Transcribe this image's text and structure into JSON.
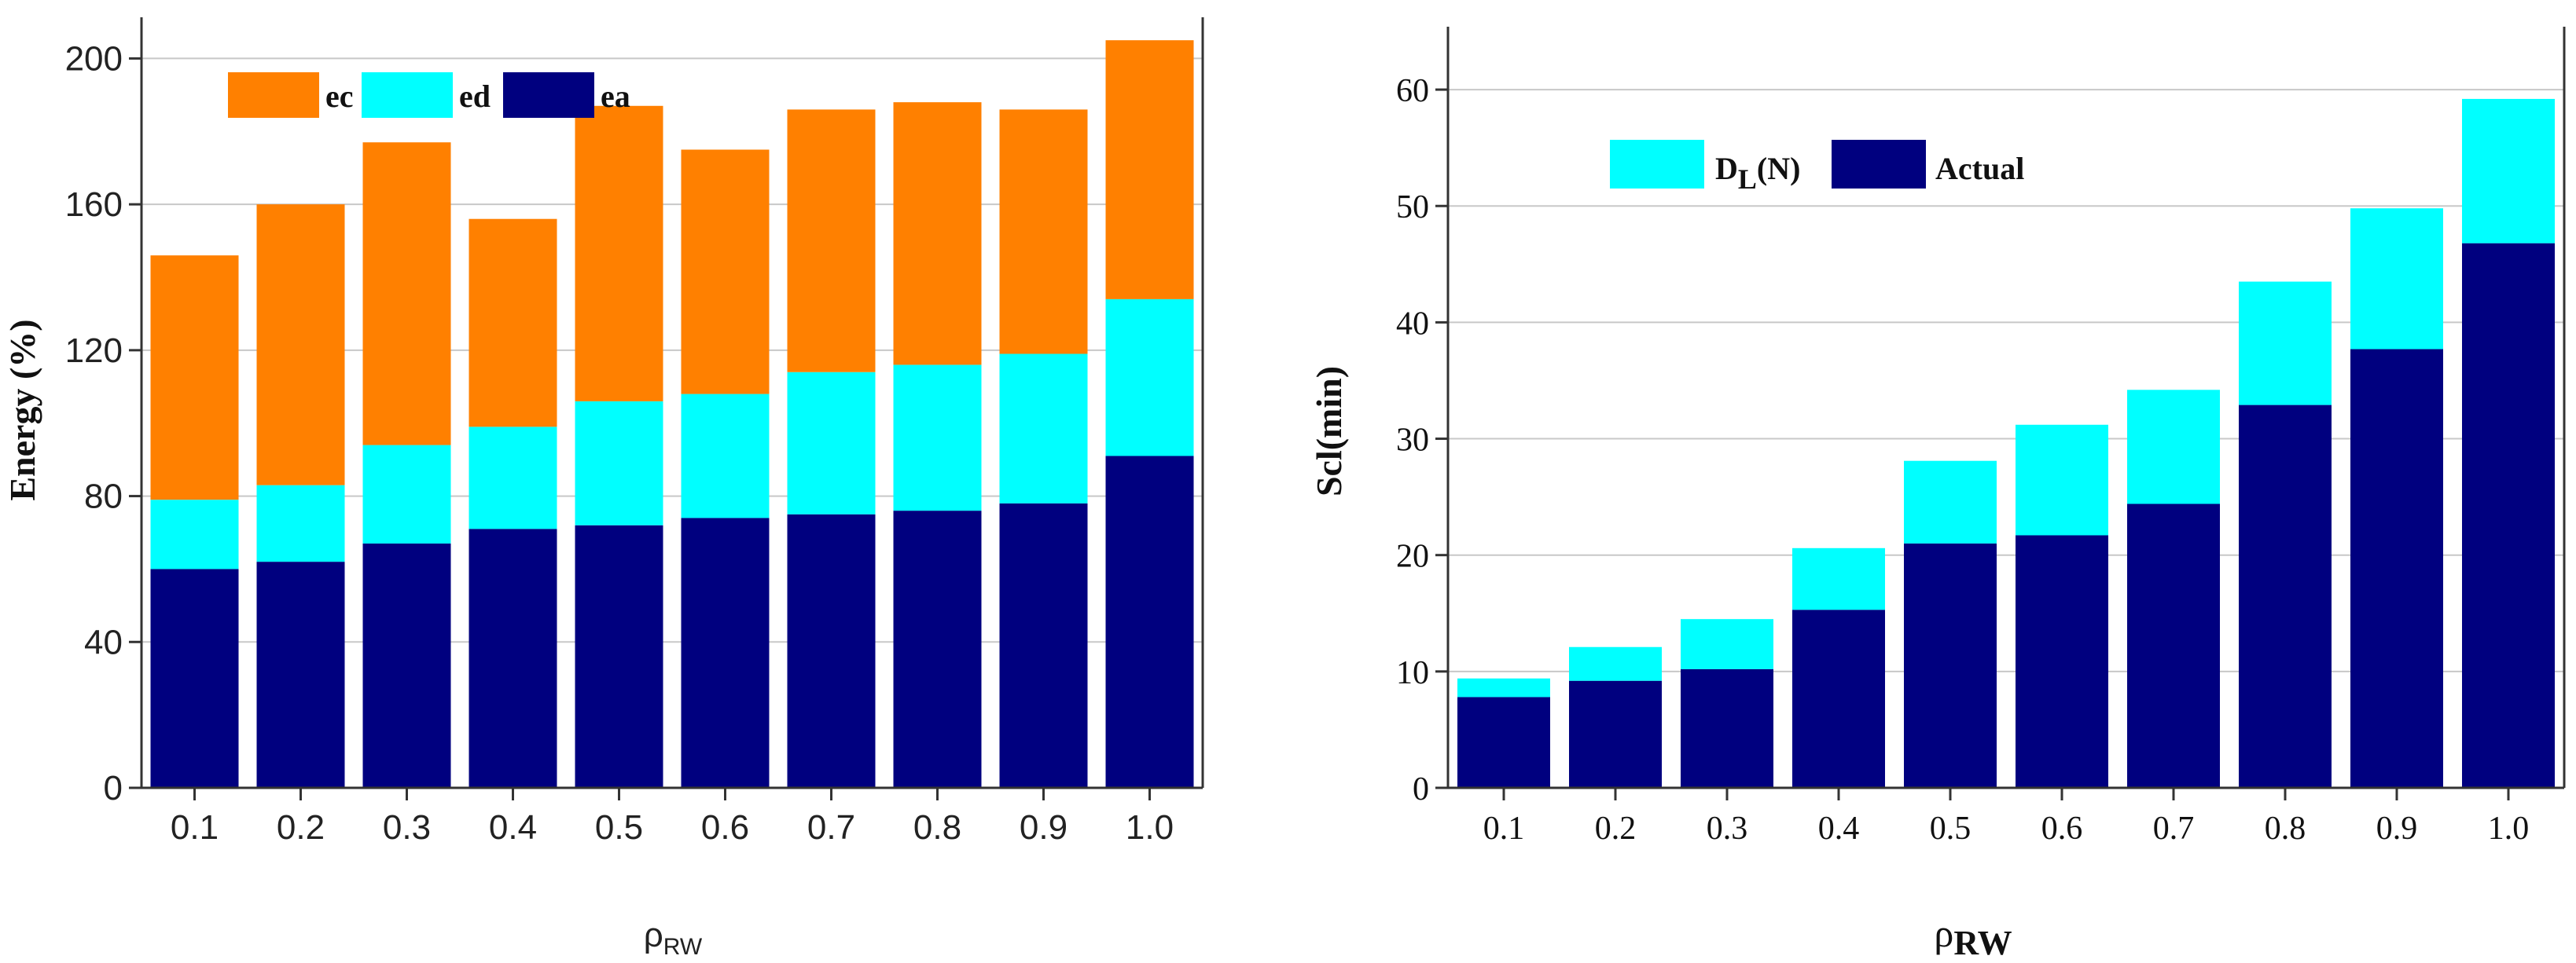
{
  "chart_data": [
    {
      "type": "bar",
      "stacked": true,
      "categories": [
        "0.1",
        "0.2",
        "0.3",
        "0.4",
        "0.5",
        "0.6",
        "0.7",
        "0.8",
        "0.9",
        "1.0"
      ],
      "series": [
        {
          "name": "ea",
          "color": "#00007f",
          "values": [
            60,
            62,
            67,
            71,
            72,
            74,
            75,
            76,
            78,
            91
          ]
        },
        {
          "name": "ed",
          "color": "#00ffff",
          "values": [
            19,
            21,
            27,
            28,
            34,
            34,
            39,
            40,
            41,
            43
          ]
        },
        {
          "name": "ec",
          "color": "#ff8000",
          "values": [
            67,
            77,
            83,
            57,
            81,
            67,
            72,
            72,
            67,
            71
          ]
        }
      ],
      "legend_order": [
        "ec",
        "ed",
        "ea"
      ],
      "title": "",
      "xlabel": {
        "main": "ρ",
        "sub": "RW"
      },
      "ylabel": "Energy (%)",
      "ylim": [
        0,
        210
      ],
      "yticks": [
        0,
        40,
        80,
        120,
        160,
        200
      ],
      "grid": true,
      "legend_position": "top-left"
    },
    {
      "type": "bar",
      "stacked": true,
      "categories": [
        "0.1",
        "0.2",
        "0.3",
        "0.4",
        "0.5",
        "0.6",
        "0.7",
        "0.8",
        "0.9",
        "1.0"
      ],
      "series": [
        {
          "name": "Actual",
          "color": "#00007f",
          "values": [
            7.8,
            9.2,
            10.2,
            15.3,
            21.0,
            21.7,
            24.4,
            32.9,
            37.7,
            46.8
          ]
        },
        {
          "name": "D_L(N)",
          "label": {
            "main": "D",
            "sub": "L",
            "suffix": "(N)"
          },
          "color": "#00ffff",
          "values": [
            1.6,
            2.9,
            4.3,
            5.3,
            7.1,
            9.5,
            9.8,
            10.6,
            12.1,
            12.4
          ]
        }
      ],
      "legend_order": [
        "D_L(N)",
        "Actual"
      ],
      "title": "",
      "xlabel": {
        "main": "ρ",
        "sub": "RW"
      },
      "ylabel": "Scl(min)",
      "ylim": [
        0,
        65
      ],
      "yticks": [
        0,
        10,
        20,
        30,
        40,
        50,
        60
      ],
      "grid": true,
      "legend_position": "top-left"
    }
  ]
}
